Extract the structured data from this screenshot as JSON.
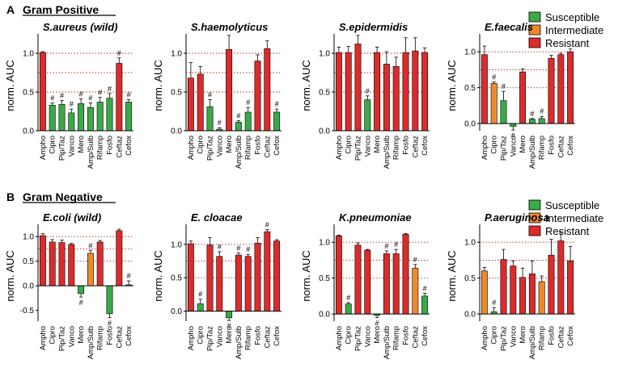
{
  "colors": {
    "susceptible": "#3aaa48",
    "intermediate": "#ee8a2c",
    "resistant": "#dc2b2b",
    "ref_line": "#b02020"
  },
  "panels": [
    {
      "letter": "A",
      "title": "Gram Positive",
      "legend": [
        {
          "label": "Susceptible",
          "color": "susceptible"
        },
        {
          "label": "Intermediate",
          "color": "intermediate"
        },
        {
          "label": "Resistant",
          "color": "resistant"
        }
      ]
    },
    {
      "letter": "B",
      "title": "Gram Negative",
      "legend": [
        {
          "label": "Susceptible",
          "color": "susceptible"
        },
        {
          "label": "Intermediate",
          "color": "intermediate"
        },
        {
          "label": "Resistant",
          "color": "resistant"
        }
      ]
    }
  ],
  "chart_data": [
    {
      "type": "bar",
      "title": "S.aureus (wild)",
      "ylabel": "norm. AUC",
      "ylim": [
        0,
        1.25
      ],
      "yticks": [
        "0.0",
        "0.5",
        "1.0"
      ],
      "ref_lines": [
        1.0,
        0.75,
        0.5
      ],
      "categories": [
        "Ampho",
        "Cipro",
        "Pip/Taz",
        "Vanco",
        "Mero",
        "Amp/Sulb",
        "Rifamp",
        "Fosfo",
        "Ceftaz",
        "Cefox"
      ],
      "values": [
        1.01,
        0.33,
        0.34,
        0.23,
        0.35,
        0.3,
        0.37,
        0.42,
        0.87,
        0.37
      ],
      "errors": [
        0.01,
        0.03,
        0.05,
        0.05,
        0.06,
        0.06,
        0.06,
        0.06,
        0.07,
        0.03
      ],
      "classes": [
        "R",
        "S",
        "S",
        "S",
        "S",
        "S",
        "S",
        "S",
        "R",
        "S"
      ],
      "marks": [
        "",
        "#",
        "#",
        "#",
        "#",
        "#",
        "#",
        "#",
        "#",
        "#"
      ]
    },
    {
      "type": "bar",
      "title": "S.haemolyticus",
      "ylabel": "norm. AUC",
      "ylim": [
        0,
        1.25
      ],
      "yticks": [
        "0.0",
        "0.5",
        "1.0"
      ],
      "ref_lines": [
        1.0,
        0.75,
        0.5
      ],
      "categories": [
        "Ampho",
        "Cipro",
        "Pip/Taz",
        "Vanco",
        "Mero",
        "Amp/Sulb",
        "Rifamp",
        "Fosfo",
        "Ceftaz",
        "Cefox"
      ],
      "values": [
        0.68,
        0.73,
        0.31,
        0.02,
        1.05,
        0.11,
        0.24,
        0.9,
        1.06,
        0.24
      ],
      "errors": [
        0.2,
        0.1,
        0.09,
        0.02,
        0.18,
        0.02,
        0.06,
        0.08,
        0.1,
        0.04
      ],
      "classes": [
        "R",
        "R",
        "S",
        "S",
        "R",
        "S",
        "S",
        "R",
        "R",
        "S"
      ],
      "marks": [
        "",
        "",
        "#",
        "#",
        "",
        "#",
        "#",
        "",
        "",
        "#"
      ]
    },
    {
      "type": "bar",
      "title": "S.epidermidis",
      "ylabel": "norm. AUC",
      "ylim": [
        0,
        1.25
      ],
      "yticks": [
        "0.0",
        "0.5",
        "1.0"
      ],
      "ref_lines": [
        1.0,
        0.75,
        0.5
      ],
      "categories": [
        "Ampho",
        "Cipro",
        "Pip/Taz",
        "Vanco",
        "Mero",
        "Amp/Sulb",
        "Rifamp",
        "Fosfo",
        "Ceftaz",
        "Cefox"
      ],
      "values": [
        1.01,
        1.01,
        1.12,
        0.4,
        1.01,
        0.86,
        0.83,
        1.01,
        1.03,
        1.01
      ],
      "errors": [
        0.07,
        0.08,
        0.11,
        0.05,
        0.07,
        0.16,
        0.12,
        0.19,
        0.17,
        0.06
      ],
      "classes": [
        "R",
        "R",
        "R",
        "S",
        "R",
        "R",
        "R",
        "R",
        "R",
        "R"
      ],
      "marks": [
        "",
        "",
        "",
        "#",
        "",
        "",
        "",
        "",
        "",
        ""
      ]
    },
    {
      "type": "bar",
      "title": "E.faecalis",
      "ylabel": "norm. AUC",
      "ylim": [
        -0.1,
        1.25
      ],
      "yticks": [
        "0.0",
        "0.5",
        "1.0"
      ],
      "ref_lines": [
        1.0,
        0.75,
        0.5
      ],
      "categories": [
        "Ampho",
        "Cipro",
        "Pip/Taz",
        "Vanco",
        "Mero",
        "Amp/Sulb",
        "Rifamp",
        "Fosfo",
        "Ceftaz",
        "Cefox"
      ],
      "values": [
        0.96,
        0.56,
        0.32,
        -0.04,
        0.72,
        0.06,
        0.07,
        0.91,
        0.96,
        1.0
      ],
      "errors": [
        0.12,
        0.02,
        0.13,
        0.05,
        0.04,
        0.01,
        0.03,
        0.04,
        0.02,
        0.04
      ],
      "classes": [
        "R",
        "I",
        "S",
        "S",
        "R",
        "S",
        "S",
        "R",
        "R",
        "R"
      ],
      "marks": [
        "",
        "#",
        "#",
        "#",
        "",
        "#",
        "#",
        "",
        "",
        ""
      ]
    },
    {
      "type": "bar",
      "title": "E.coli (wild)",
      "ylabel": "norm. AUC",
      "ylim": [
        -0.72,
        1.25
      ],
      "yticks": [
        "-0.5",
        "0.0",
        "0.5",
        "1.0"
      ],
      "ref_lines": [
        1.0,
        0.75,
        0.5
      ],
      "categories": [
        "Ampho",
        "Cipro",
        "Pip/Taz",
        "Vanco",
        "Mero",
        "Amp/Sulb",
        "Rifamp",
        "Fosfo",
        "Ceftaz",
        "Cefox"
      ],
      "values": [
        1.02,
        0.89,
        0.88,
        0.84,
        -0.16,
        0.66,
        0.89,
        -0.57,
        1.12,
        0.02
      ],
      "errors": [
        0.04,
        0.05,
        0.05,
        0.02,
        0.07,
        0.06,
        0.03,
        0.08,
        0.03,
        0.08
      ],
      "classes": [
        "R",
        "R",
        "R",
        "R",
        "S",
        "I",
        "R",
        "S",
        "R",
        "S"
      ],
      "marks": [
        "",
        "",
        "",
        "",
        "#",
        "#",
        "",
        "#",
        "",
        "#"
      ]
    },
    {
      "type": "bar",
      "title": "E. cloacae",
      "ylabel": "norm. AUC",
      "ylim": [
        -0.15,
        1.3
      ],
      "yticks": [
        "0.0",
        "0.5",
        "1.0"
      ],
      "ref_lines": [
        1.0,
        0.75,
        0.5
      ],
      "categories": [
        "Ampho",
        "Cipro",
        "Pip/Taz",
        "Vanco",
        "Mero",
        "Amp/Sulb",
        "Rifamp",
        "Fosfo",
        "Ceftaz",
        "Cefox"
      ],
      "values": [
        1.01,
        0.11,
        0.99,
        0.82,
        -0.1,
        0.84,
        0.82,
        1.02,
        1.19,
        1.05
      ],
      "errors": [
        0.04,
        0.07,
        0.11,
        0.07,
        0.04,
        0.03,
        0.03,
        0.08,
        0.03,
        0.02
      ],
      "classes": [
        "R",
        "S",
        "R",
        "R",
        "S",
        "R",
        "R",
        "R",
        "R",
        "R"
      ],
      "marks": [
        "",
        "#",
        "",
        "#",
        "#",
        "#",
        "#",
        "",
        "#",
        ""
      ]
    },
    {
      "type": "bar",
      "title": "K.pneumoniae",
      "ylabel": "norm. AUC",
      "ylim": [
        -0.1,
        1.25
      ],
      "yticks": [
        "0.0",
        "0.5",
        "1.0"
      ],
      "ref_lines": [
        1.0,
        0.75,
        0.5
      ],
      "categories": [
        "Ampho",
        "Cipro",
        "Pip/Taz",
        "Vanco",
        "Mero",
        "Amp/Sulb",
        "Rifamp",
        "Fosfo",
        "Ceftaz",
        "Cefox"
      ],
      "values": [
        1.09,
        0.14,
        0.96,
        0.89,
        -0.02,
        0.84,
        0.84,
        1.11,
        0.64,
        0.25
      ],
      "errors": [
        0.01,
        0.02,
        0.03,
        0.01,
        0.03,
        0.04,
        0.06,
        0.01,
        0.05,
        0.04
      ],
      "classes": [
        "R",
        "S",
        "R",
        "R",
        "S",
        "R",
        "R",
        "R",
        "I",
        "S"
      ],
      "marks": [
        "",
        "#",
        "",
        "",
        "#",
        "#",
        "#",
        "",
        "#",
        "#"
      ]
    },
    {
      "type": "bar",
      "title": "P.aeruginosa",
      "ylabel": "norm. AUC",
      "ylim": [
        -0.1,
        1.25
      ],
      "yticks": [
        "0.0",
        "0.5",
        "1.0"
      ],
      "ref_lines": [
        1.0,
        0.75,
        0.5
      ],
      "categories": [
        "Ampho",
        "Cipro",
        "Pip/Taz",
        "Vanco",
        "Mero",
        "Amp/Sulb",
        "Rifamp",
        "Fosfo",
        "Ceftaz",
        "Cefox"
      ],
      "values": [
        0.6,
        0.03,
        0.76,
        0.67,
        0.51,
        0.56,
        0.45,
        0.82,
        1.02,
        0.74
      ],
      "errors": [
        0.05,
        0.06,
        0.14,
        0.07,
        0.13,
        0.18,
        0.08,
        0.22,
        0.12,
        0.2
      ],
      "classes": [
        "I",
        "S",
        "R",
        "R",
        "R",
        "R",
        "I",
        "R",
        "R",
        "R"
      ],
      "marks": [
        "",
        "#",
        "",
        "",
        "",
        "",
        "",
        "",
        "",
        ""
      ]
    }
  ]
}
